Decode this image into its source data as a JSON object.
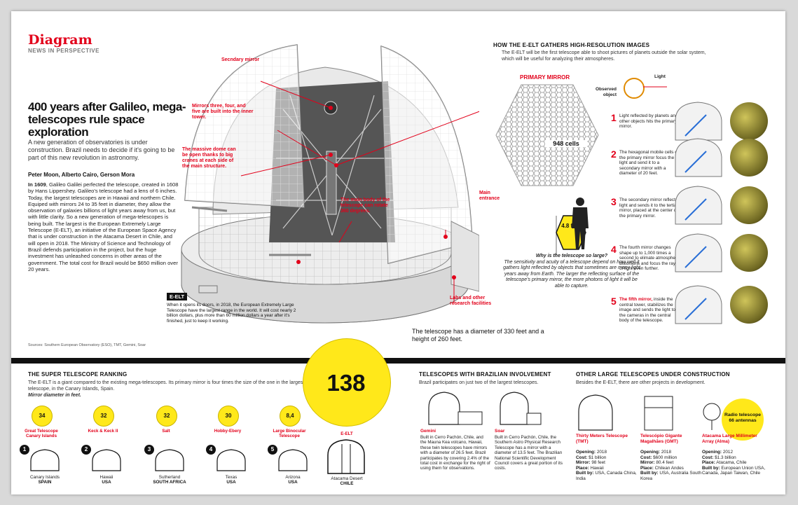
{
  "brand": {
    "name": "Diagram",
    "subtitle": "NEWS IN PERSPECTIVE"
  },
  "article": {
    "title": "400 years after Galileo, mega-telescopes rule space exploration",
    "dek": "A new generation of observatories is under construction. Brazil needs to decide if it's going to be part of this new revolution in astronomy.",
    "byline": "Peter Moon, Alberto Cairo, Gerson Mora",
    "body_lead": "In 1609",
    "body": ", Galileo Galilei perfected the telescope, created in 1608 by Hans Lippershey. Galileo's telescope had a lens of 6 inches. Today, the largest telescopes are in Hawaii and northern Chile. Equiped with mirrors 24 to 35 feet in diameter, they allow the observation of galaxies billions of light years away from us, but with little clarity. So a new generation of mega-telescopes is being built. The largest is the European Extremely Large Telescope (E-ELT), an initiative of the European Space Agency that is under construction in the Atacama Desert in Chile, and will open in 2018. The Ministry of Science and Technology of Brazil defends participation in the project, but the huge investment has unleashed concerns in other areas of the government. The total cost for Brazil would be $650 million over 20 years.",
    "sources": "Sources: Southern European Observatory (ESO), TMT, Gemini, Soar"
  },
  "dome_labels": {
    "secondary": "Secndary mirror",
    "inner_tower": "Mirrors three, four, and five are built into the inner tower.",
    "massive_dome": "The massive dome can be open thanks to big cranes at each side of the main structure.",
    "main_body": "The main body of the telescope can rotate 360 degrees.",
    "main_entrance": "Main entrance",
    "labs": "Labs and other research facilities"
  },
  "elt_box": {
    "tag": "E-ELT",
    "text": "When it opens its doors, in 2018, the European Extremely Large Telescope have the largest range in the world. It will cost nearly 2 billion dollars, plus more than 60 million dollars a year after it's finished, just to keep it working."
  },
  "diameter_note": "The telescope has a diameter of 330 feet and a height of 260 feet.",
  "hires": {
    "heading": "HOW THE E-ELT GATHERS HIGH-RESOLUTION IMAGES",
    "intro": "The E-ELT will be the first telescope able to shoot pictures of planets outside the solar system, which will be useful for analyzing their atmospheres.",
    "primary_mirror": "PRIMARY MIRROR",
    "cells": "948 cells",
    "hex_size": "4.8 feet",
    "light": "Light",
    "observed": "Observed object",
    "why_title": "Why is the telescope so large?",
    "why_text": "The sensitivity and acuity of a telescope depend on how well it gathers light reflected by objects that sometimes are many light years away from Earth. The larger the reflecting surface of the telescope's primary mirror, the more photons of light it will be able to capture.",
    "steps": [
      {
        "n": "1",
        "lead": "",
        "text": "Light reflected by planets and other objects hits the primary mirror."
      },
      {
        "n": "2",
        "lead": "",
        "text": "The hexagonal mobile cells of the primary mirror focus the light and send it to a secondary mirror with a diameter of 20 feet."
      },
      {
        "n": "3",
        "lead": "",
        "text": "The secondary mirror reflects light and sends it to the tertiary mirror, placed at the center of the primary mirror."
      },
      {
        "n": "4",
        "lead": "",
        "text": "The fourth mirror changes shape up to 1,000 times a second to elimate atmospheric distortions and focus the rays of light even further."
      },
      {
        "n": "5",
        "lead": "The fifth mirror,",
        "text": " inside the central tower, stabilizes the image and sends the light to the cameras in the central body of the telescope."
      }
    ]
  },
  "ranking": {
    "heading": "THE SUPER TELESCOPE RANKING",
    "intro": "The E-ELT is a giant compared to the existing mega-telescopes. Its primary mirror is four times the size of the one in the largest telescope, in the Canary Islands, Spain.",
    "note": "Mirror diameter in feet.",
    "items": [
      {
        "rank": "1",
        "size": "34",
        "name": "Great Telescope Canary Islands",
        "place": "Canary Islands",
        "country": "SPAIN"
      },
      {
        "rank": "2",
        "size": "32",
        "name": "Keck & Keck II",
        "place": "Hawaii",
        "country": "USA"
      },
      {
        "rank": "3",
        "size": "32",
        "name": "Salt",
        "place": "Sutherland",
        "country": "SOUTH AFRICA"
      },
      {
        "rank": "4",
        "size": "30",
        "name": "Hobby-Ebery",
        "place": "Texas",
        "country": "USA"
      },
      {
        "rank": "5",
        "size": "8,4",
        "name": "Large Binocular Telescope",
        "place": "Arizona",
        "country": "USA"
      }
    ],
    "elt": {
      "size": "138",
      "name": "E-ELT",
      "place": "Atacama Desert",
      "country": "CHILE"
    }
  },
  "brazil": {
    "heading": "TELESCOPES WITH BRAZILIAN INVOLVEMENT",
    "intro": "Brazil participates on just two of the largest telescopes.",
    "items": [
      {
        "name": "Gemini",
        "text": "Built in Cerro Pachón, Chile, and the Mauna Kea volcano, Hawaii, these twin telescopes have mirrors with a diameter of 26.5 feet. Brazil participates by covering 2.4% of the total cost in exchange for the right of using them for observations."
      },
      {
        "name": "Soar",
        "text": "Built in Cerro Pachón, Chile, the Southern Astro Physical Research Telescope has a mirror with a diameter of 13.5 feet. The Brazilian National Scientific Development Council covers a great portion of its costs."
      }
    ]
  },
  "other": {
    "heading": "OTHER LARGE TELESCOPES UNDER CONSTRUCTION",
    "intro": "Besides the E-ELT, there are other projects in development.",
    "radio_tag": "Radio telescope 66 antennas",
    "labels": {
      "opening": "Opening:",
      "cost": "Cost:",
      "mirror": "Mirror:",
      "place": "Place:",
      "built": "Built by:"
    },
    "items": [
      {
        "name": "Thirty Meters Telescope (TMT)",
        "opening": "2018",
        "cost": "$1 billion",
        "mirror": "98 feet",
        "place": "Hawaii",
        "built": "USA, Canada China, India"
      },
      {
        "name": "Telescópio Gigante Magalhães (GMT)",
        "opening": "2018",
        "cost": "$600 million",
        "mirror": "80.4 feet",
        "place": "Chilean Andes",
        "built": "USA, Australia South Korea"
      },
      {
        "name": "Atacama Large Millimeter Array (Alma)",
        "opening": "2012",
        "cost": "$1.3 billion",
        "mirror": "",
        "place": "Atacama, Chile",
        "built": "European Union USA, Canada, Japan Taiwan, Chile"
      }
    ]
  },
  "colors": {
    "red": "#e2001a",
    "yellow": "#ffe81a",
    "black": "#111111"
  }
}
